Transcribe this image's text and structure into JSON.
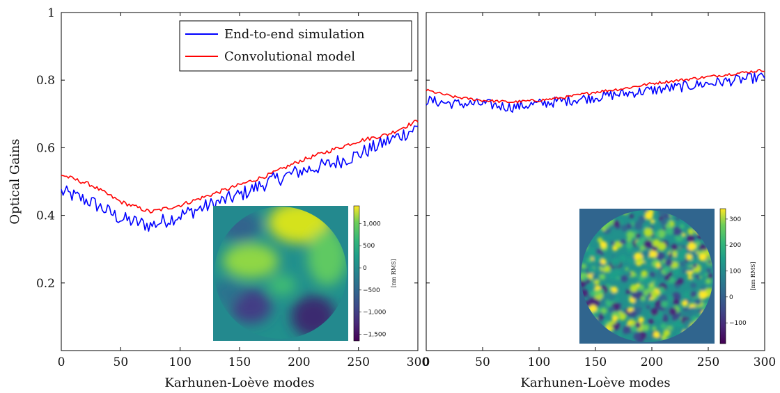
{
  "chart_data": [
    {
      "type": "line",
      "panel": "left",
      "xlabel": "Karhunen-Loève modes",
      "ylabel": "Optical Gains",
      "xlim": [
        0,
        300
      ],
      "ylim": [
        0,
        1
      ],
      "xticks": [
        "0",
        "50",
        "100",
        "150",
        "200",
        "250",
        "300"
      ],
      "yticks": [
        "0.2",
        "0.4",
        "0.6",
        "0.8",
        "1"
      ],
      "legend": {
        "placement": "top-right",
        "entries": [
          "End-to-end simulation",
          "Convolutional model"
        ]
      },
      "series": [
        {
          "name": "End-to-end simulation",
          "color": "#0000ff",
          "x": [
            0,
            25,
            50,
            75,
            100,
            125,
            150,
            175,
            200,
            225,
            250,
            275,
            300
          ],
          "values": [
            0.47,
            0.44,
            0.39,
            0.37,
            0.4,
            0.43,
            0.46,
            0.5,
            0.53,
            0.55,
            0.58,
            0.62,
            0.66
          ]
        },
        {
          "name": "Convolutional model",
          "color": "#ff0000",
          "x": [
            0,
            25,
            50,
            75,
            100,
            125,
            150,
            175,
            200,
            225,
            250,
            275,
            300
          ],
          "values": [
            0.52,
            0.49,
            0.44,
            0.41,
            0.43,
            0.46,
            0.49,
            0.52,
            0.56,
            0.59,
            0.62,
            0.64,
            0.68
          ]
        }
      ],
      "inset": {
        "content": "phase screen (low-order turbulence)",
        "colorbar_label": "[nm RMS]",
        "colorbar_ticks": [
          "1,000",
          "500",
          "0",
          "−500",
          "−1,000",
          "−1,500"
        ],
        "colorbar_range": [
          -1650,
          1400
        ]
      }
    },
    {
      "type": "line",
      "panel": "right",
      "xlabel": "Karhunen-Loève modes",
      "xlim": [
        0,
        300
      ],
      "ylim": [
        0,
        1
      ],
      "xticks": [
        "0",
        "50",
        "100",
        "150",
        "200",
        "250",
        "300"
      ],
      "series": [
        {
          "name": "End-to-end simulation",
          "color": "#0000ff",
          "x": [
            0,
            25,
            50,
            75,
            100,
            125,
            150,
            175,
            200,
            225,
            250,
            275,
            300
          ],
          "values": [
            0.74,
            0.73,
            0.73,
            0.72,
            0.73,
            0.74,
            0.75,
            0.76,
            0.77,
            0.78,
            0.79,
            0.8,
            0.81
          ]
        },
        {
          "name": "Convolutional model",
          "color": "#ff0000",
          "x": [
            0,
            25,
            50,
            75,
            100,
            125,
            150,
            175,
            200,
            225,
            250,
            275,
            300
          ],
          "values": [
            0.77,
            0.75,
            0.74,
            0.735,
            0.74,
            0.75,
            0.765,
            0.775,
            0.79,
            0.8,
            0.81,
            0.82,
            0.83
          ]
        }
      ],
      "inset": {
        "content": "phase screen (high-order residual)",
        "colorbar_label": "[nm RMS]",
        "colorbar_ticks": [
          "300",
          "200",
          "100",
          "0",
          "−100"
        ],
        "colorbar_range": [
          -180,
          340
        ]
      }
    }
  ]
}
